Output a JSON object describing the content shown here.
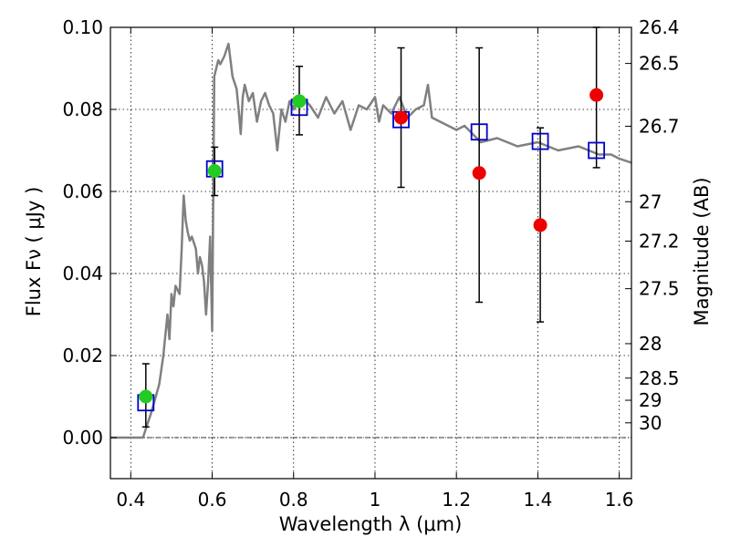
{
  "chart_data": {
    "type": "scatter",
    "xlabel": "Wavelength  λ (μm)",
    "ylabel": "Flux  Fν  ( μJy )",
    "ylabel_right": "Magnitude (AB)",
    "xlim": [
      0.35,
      1.63
    ],
    "ylim": [
      -0.01,
      0.1
    ],
    "grid": true,
    "x_ticks": [
      {
        "v": 0.4,
        "label": "0.4"
      },
      {
        "v": 0.6,
        "label": "0.6"
      },
      {
        "v": 0.8,
        "label": "0.8"
      },
      {
        "v": 1.0,
        "label": "1"
      },
      {
        "v": 1.2,
        "label": "1.2"
      },
      {
        "v": 1.4,
        "label": "1.4"
      },
      {
        "v": 1.6,
        "label": "1.6"
      }
    ],
    "y_ticks": [
      {
        "v": 0.0,
        "label": "0.00"
      },
      {
        "v": 0.02,
        "label": "0.02"
      },
      {
        "v": 0.04,
        "label": "0.04"
      },
      {
        "v": 0.06,
        "label": "0.06"
      },
      {
        "v": 0.08,
        "label": "0.08"
      },
      {
        "v": 0.1,
        "label": "0.10"
      }
    ],
    "right_ticks": [
      {
        "label": "26.4",
        "flux": 0.1
      },
      {
        "label": "26.5",
        "flux": 0.0912
      },
      {
        "label": "26.7",
        "flux": 0.0759
      },
      {
        "label": "27",
        "flux": 0.0575
      },
      {
        "label": "27.2",
        "flux": 0.0479
      },
      {
        "label": "27.5",
        "flux": 0.0363
      },
      {
        "label": "28",
        "flux": 0.0229
      },
      {
        "label": "28.5",
        "flux": 0.0145
      },
      {
        "label": "29",
        "flux": 0.0091
      },
      {
        "label": "30",
        "flux": 0.0036
      }
    ],
    "zero_line": 0,
    "series": [
      {
        "kind": "line",
        "color": "#808080",
        "x": [
          0.35,
          0.43,
          0.44,
          0.45,
          0.47,
          0.48,
          0.49,
          0.495,
          0.5,
          0.505,
          0.51,
          0.52,
          0.525,
          0.53,
          0.535,
          0.54,
          0.545,
          0.55,
          0.56,
          0.565,
          0.57,
          0.575,
          0.58,
          0.585,
          0.59,
          0.595,
          0.6,
          0.605,
          0.61,
          0.615,
          0.62,
          0.63,
          0.64,
          0.645,
          0.65,
          0.66,
          0.665,
          0.67,
          0.675,
          0.68,
          0.69,
          0.7,
          0.71,
          0.72,
          0.73,
          0.74,
          0.75,
          0.76,
          0.77,
          0.78,
          0.79,
          0.8,
          0.82,
          0.84,
          0.86,
          0.88,
          0.9,
          0.92,
          0.94,
          0.96,
          0.98,
          1.0,
          1.01,
          1.02,
          1.04,
          1.06,
          1.08,
          1.1,
          1.12,
          1.13,
          1.14,
          1.16,
          1.18,
          1.2,
          1.22,
          1.24,
          1.26,
          1.3,
          1.35,
          1.4,
          1.45,
          1.5,
          1.55,
          1.58,
          1.6,
          1.63
        ],
        "y": [
          0.0,
          0.0,
          0.003,
          0.006,
          0.013,
          0.02,
          0.03,
          0.024,
          0.035,
          0.032,
          0.037,
          0.035,
          0.046,
          0.059,
          0.053,
          0.05,
          0.048,
          0.049,
          0.046,
          0.04,
          0.044,
          0.042,
          0.038,
          0.03,
          0.038,
          0.049,
          0.026,
          0.088,
          0.09,
          0.092,
          0.091,
          0.093,
          0.096,
          0.092,
          0.088,
          0.085,
          0.08,
          0.074,
          0.083,
          0.086,
          0.082,
          0.084,
          0.077,
          0.082,
          0.084,
          0.081,
          0.079,
          0.07,
          0.08,
          0.077,
          0.082,
          0.08,
          0.083,
          0.081,
          0.078,
          0.083,
          0.079,
          0.082,
          0.075,
          0.081,
          0.08,
          0.083,
          0.077,
          0.081,
          0.079,
          0.083,
          0.078,
          0.08,
          0.081,
          0.086,
          0.078,
          0.077,
          0.076,
          0.075,
          0.076,
          0.074,
          0.072,
          0.073,
          0.071,
          0.072,
          0.07,
          0.071,
          0.069,
          0.069,
          0.068,
          0.067
        ]
      },
      {
        "kind": "errorbar",
        "color": "#000000",
        "points": [
          {
            "x": 0.437,
            "low": 0.0026,
            "high": 0.018
          },
          {
            "x": 0.606,
            "low": 0.059,
            "high": 0.0708
          },
          {
            "x": 0.814,
            "low": 0.0738,
            "high": 0.0905
          },
          {
            "x": 1.064,
            "low": 0.061,
            "high": 0.095
          },
          {
            "x": 1.256,
            "low": 0.033,
            "high": 0.095
          },
          {
            "x": 1.406,
            "low": 0.0282,
            "high": 0.0755
          },
          {
            "x": 1.544,
            "low": 0.0658,
            "high": 0.1
          }
        ]
      },
      {
        "kind": "square",
        "color": "#0000cc",
        "x": [
          0.437,
          0.606,
          0.814,
          1.064,
          1.256,
          1.406,
          1.544
        ],
        "y": [
          0.0085,
          0.0655,
          0.0805,
          0.0775,
          0.0745,
          0.0722,
          0.07
        ]
      },
      {
        "kind": "circle",
        "color": "#22cc22",
        "x": [
          0.437,
          0.606,
          0.814
        ],
        "y": [
          0.01,
          0.065,
          0.082
        ]
      },
      {
        "kind": "circle",
        "color": "#ee0000",
        "x": [
          1.064,
          1.256,
          1.406,
          1.544
        ],
        "y": [
          0.078,
          0.0645,
          0.0518,
          0.0835
        ]
      }
    ]
  }
}
